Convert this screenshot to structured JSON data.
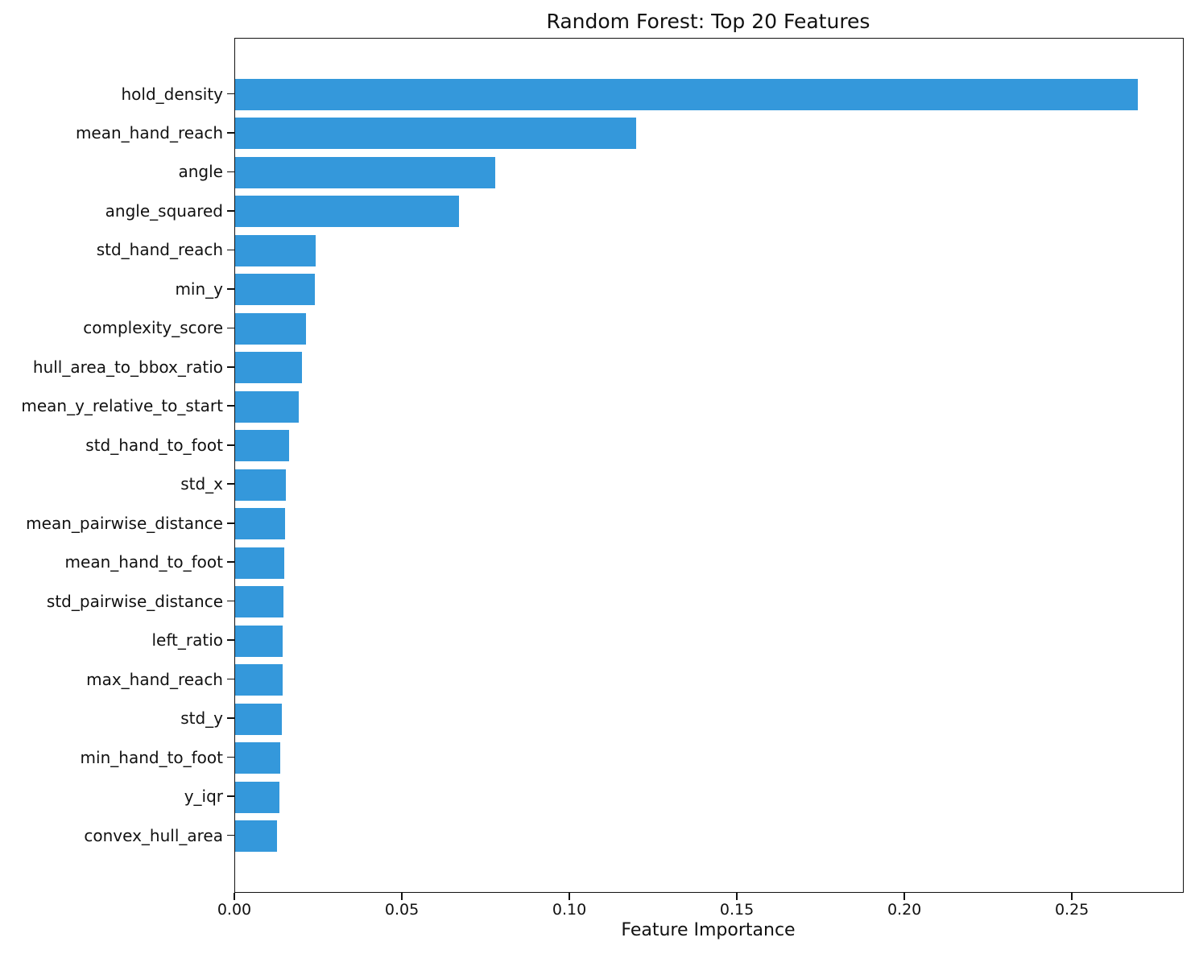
{
  "chart_data": {
    "type": "bar",
    "orientation": "horizontal",
    "title": "Random Forest: Top 20 Features",
    "xlabel": "Feature Importance",
    "ylabel": "",
    "categories": [
      "hold_density",
      "mean_hand_reach",
      "angle",
      "angle_squared",
      "std_hand_reach",
      "min_y",
      "complexity_score",
      "hull_area_to_bbox_ratio",
      "mean_y_relative_to_start",
      "std_hand_to_foot",
      "std_x",
      "mean_pairwise_distance",
      "mean_hand_to_foot",
      "std_pairwise_distance",
      "left_ratio",
      "max_hand_reach",
      "std_y",
      "min_hand_to_foot",
      "y_iqr",
      "convex_hull_area"
    ],
    "values": [
      0.2695,
      0.1197,
      0.0777,
      0.0668,
      0.024,
      0.0238,
      0.0212,
      0.02,
      0.019,
      0.0161,
      0.0151,
      0.0149,
      0.0147,
      0.0144,
      0.0142,
      0.0142,
      0.0139,
      0.0135,
      0.0132,
      0.0125
    ],
    "xlim": [
      0,
      0.2829
    ],
    "xticks": [
      0.0,
      0.05,
      0.1,
      0.15,
      0.2,
      0.25
    ],
    "xtick_labels": [
      "0.00",
      "0.05",
      "0.10",
      "0.15",
      "0.20",
      "0.25"
    ],
    "bar_color": "#3498db",
    "spine_color": "#121212",
    "text_color": "#111111",
    "background_color": "#ffffff",
    "grid": false,
    "legend": null
  }
}
